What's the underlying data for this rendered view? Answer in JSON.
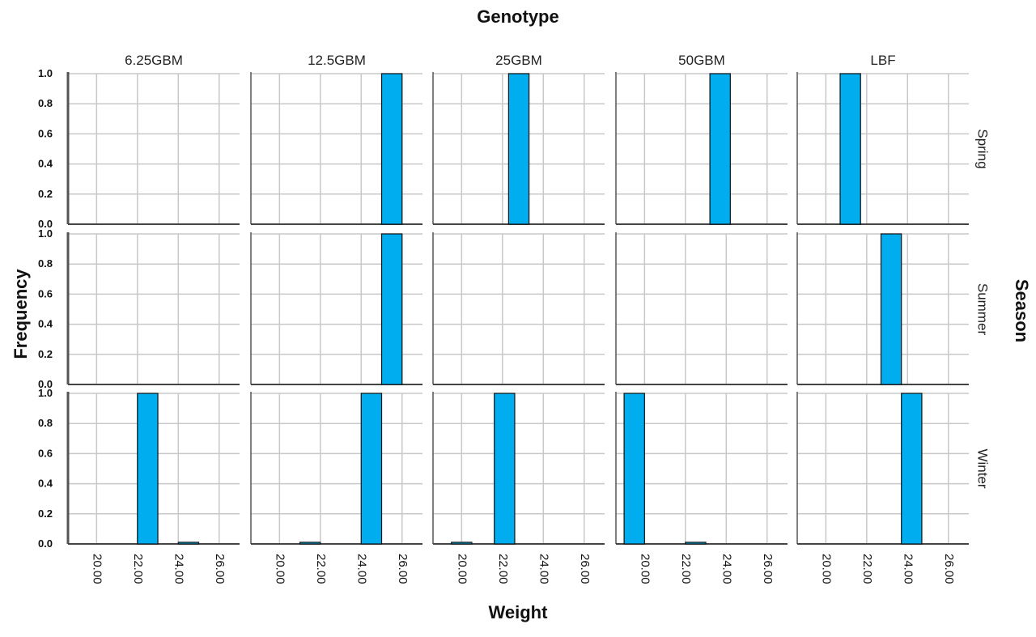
{
  "chart_data": {
    "type": "bar",
    "chart_kind": "faceted histogram",
    "title": "Genotype",
    "xlabel": "Weight",
    "ylabel": "Frequency",
    "row_title": "Season",
    "columns": [
      "6.25GBM",
      "12.5GBM",
      "25GBM",
      "50GBM",
      "LBF"
    ],
    "rows": [
      "Spring",
      "Summer",
      "Winter"
    ],
    "x_ticks": [
      "20.00",
      "22.00",
      "24.00",
      "26.00"
    ],
    "y_ticks": [
      "0.0",
      "0.2",
      "0.4",
      "0.6",
      "0.8",
      "1.0"
    ],
    "xlim": [
      18.6,
      27.0
    ],
    "ylim": [
      0,
      1.0
    ],
    "grid": true,
    "bar_color": "#00AEEF",
    "bar_width": 1.0,
    "panels": [
      {
        "column": "6.25GBM",
        "row": "Spring",
        "bars": []
      },
      {
        "column": "12.5GBM",
        "row": "Spring",
        "bars": [
          {
            "x": 25.5,
            "y": 1
          }
        ]
      },
      {
        "column": "25GBM",
        "row": "Spring",
        "bars": [
          {
            "x": 22.8,
            "y": 1
          }
        ]
      },
      {
        "column": "50GBM",
        "row": "Spring",
        "bars": [
          {
            "x": 23.7,
            "y": 1
          }
        ]
      },
      {
        "column": "LBF",
        "row": "Spring",
        "bars": [
          {
            "x": 21.2,
            "y": 1
          }
        ]
      },
      {
        "column": "6.25GBM",
        "row": "Summer",
        "bars": []
      },
      {
        "column": "12.5GBM",
        "row": "Summer",
        "bars": [
          {
            "x": 25.5,
            "y": 1
          }
        ]
      },
      {
        "column": "25GBM",
        "row": "Summer",
        "bars": []
      },
      {
        "column": "50GBM",
        "row": "Summer",
        "bars": []
      },
      {
        "column": "LBF",
        "row": "Summer",
        "bars": [
          {
            "x": 23.2,
            "y": 1
          }
        ]
      },
      {
        "column": "6.25GBM",
        "row": "Winter",
        "bars": [
          {
            "x": 22.5,
            "y": 1
          },
          {
            "x": 24.5,
            "y": 0
          }
        ]
      },
      {
        "column": "12.5GBM",
        "row": "Winter",
        "bars": [
          {
            "x": 21.5,
            "y": 0
          },
          {
            "x": 24.5,
            "y": 1
          }
        ]
      },
      {
        "column": "25GBM",
        "row": "Winter",
        "bars": [
          {
            "x": 20.0,
            "y": 0
          },
          {
            "x": 22.1,
            "y": 1
          }
        ]
      },
      {
        "column": "50GBM",
        "row": "Winter",
        "bars": [
          {
            "x": 19.5,
            "y": 1
          },
          {
            "x": 22.5,
            "y": 0
          }
        ]
      },
      {
        "column": "LBF",
        "row": "Winter",
        "bars": [
          {
            "x": 24.2,
            "y": 1
          }
        ]
      }
    ]
  }
}
